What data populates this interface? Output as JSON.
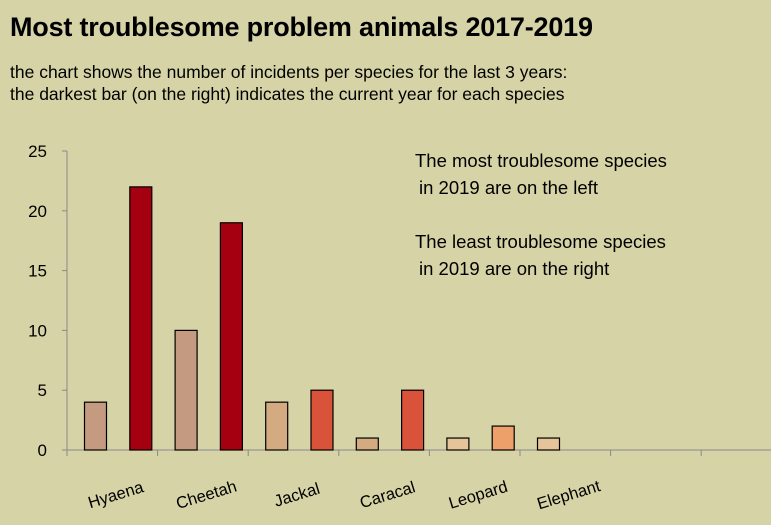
{
  "title": "Most troublesome problem animals 2017-2019",
  "subtitle_line1": "the chart shows the number of incidents per species for the last 3 years:",
  "subtitle_line2": "the darkest bar (on the right) indicates the current year for each species",
  "annotations": {
    "most_line1": "The most troublesome species",
    "most_line2": "in 2019 are on the left",
    "least_line1": "The least troublesome species",
    "least_line2": "in 2019 are on the right"
  },
  "colors": {
    "background": "#d6d3a6",
    "hyaena_light": "#c49a80",
    "hyaena_dark": "#a50010",
    "cheetah_light": "#c49a80",
    "cheetah_dark": "#a50010",
    "jackal_light": "#d4aa80",
    "jackal_dark": "#d9533a",
    "caracal_light": "#d4aa80",
    "caracal_dark": "#d9533a",
    "leopard_light": "#e6c49a",
    "leopard_dark": "#eda06a",
    "elephant_light": "#e6c49a"
  },
  "chart_data": {
    "type": "bar",
    "ylim": [
      0,
      25
    ],
    "yticks": [
      "0",
      "5",
      "10",
      "15",
      "20",
      "25"
    ],
    "grid": false,
    "categories": [
      "Hyaena",
      "Cheetah",
      "Jackal",
      "Caracal",
      "Leopard",
      "Elephant"
    ],
    "bars": [
      {
        "category": "Hyaena",
        "value": 4,
        "color": "#c49a80"
      },
      {
        "category": "Hyaena",
        "value": 22,
        "color": "#a50010"
      },
      {
        "category": "Cheetah",
        "value": 10,
        "color": "#c49a80"
      },
      {
        "category": "Cheetah",
        "value": 19,
        "color": "#a50010"
      },
      {
        "category": "Jackal",
        "value": 4,
        "color": "#d4aa80"
      },
      {
        "category": "Jackal",
        "value": 5,
        "color": "#d9533a"
      },
      {
        "category": "Caracal",
        "value": 1,
        "color": "#d4aa80"
      },
      {
        "category": "Caracal",
        "value": 5,
        "color": "#d9533a"
      },
      {
        "category": "Leopard",
        "value": 1,
        "color": "#e6c49a"
      },
      {
        "category": "Leopard",
        "value": 2,
        "color": "#eda06a"
      },
      {
        "category": "Elephant",
        "value": 1,
        "color": "#e6c49a"
      }
    ]
  }
}
